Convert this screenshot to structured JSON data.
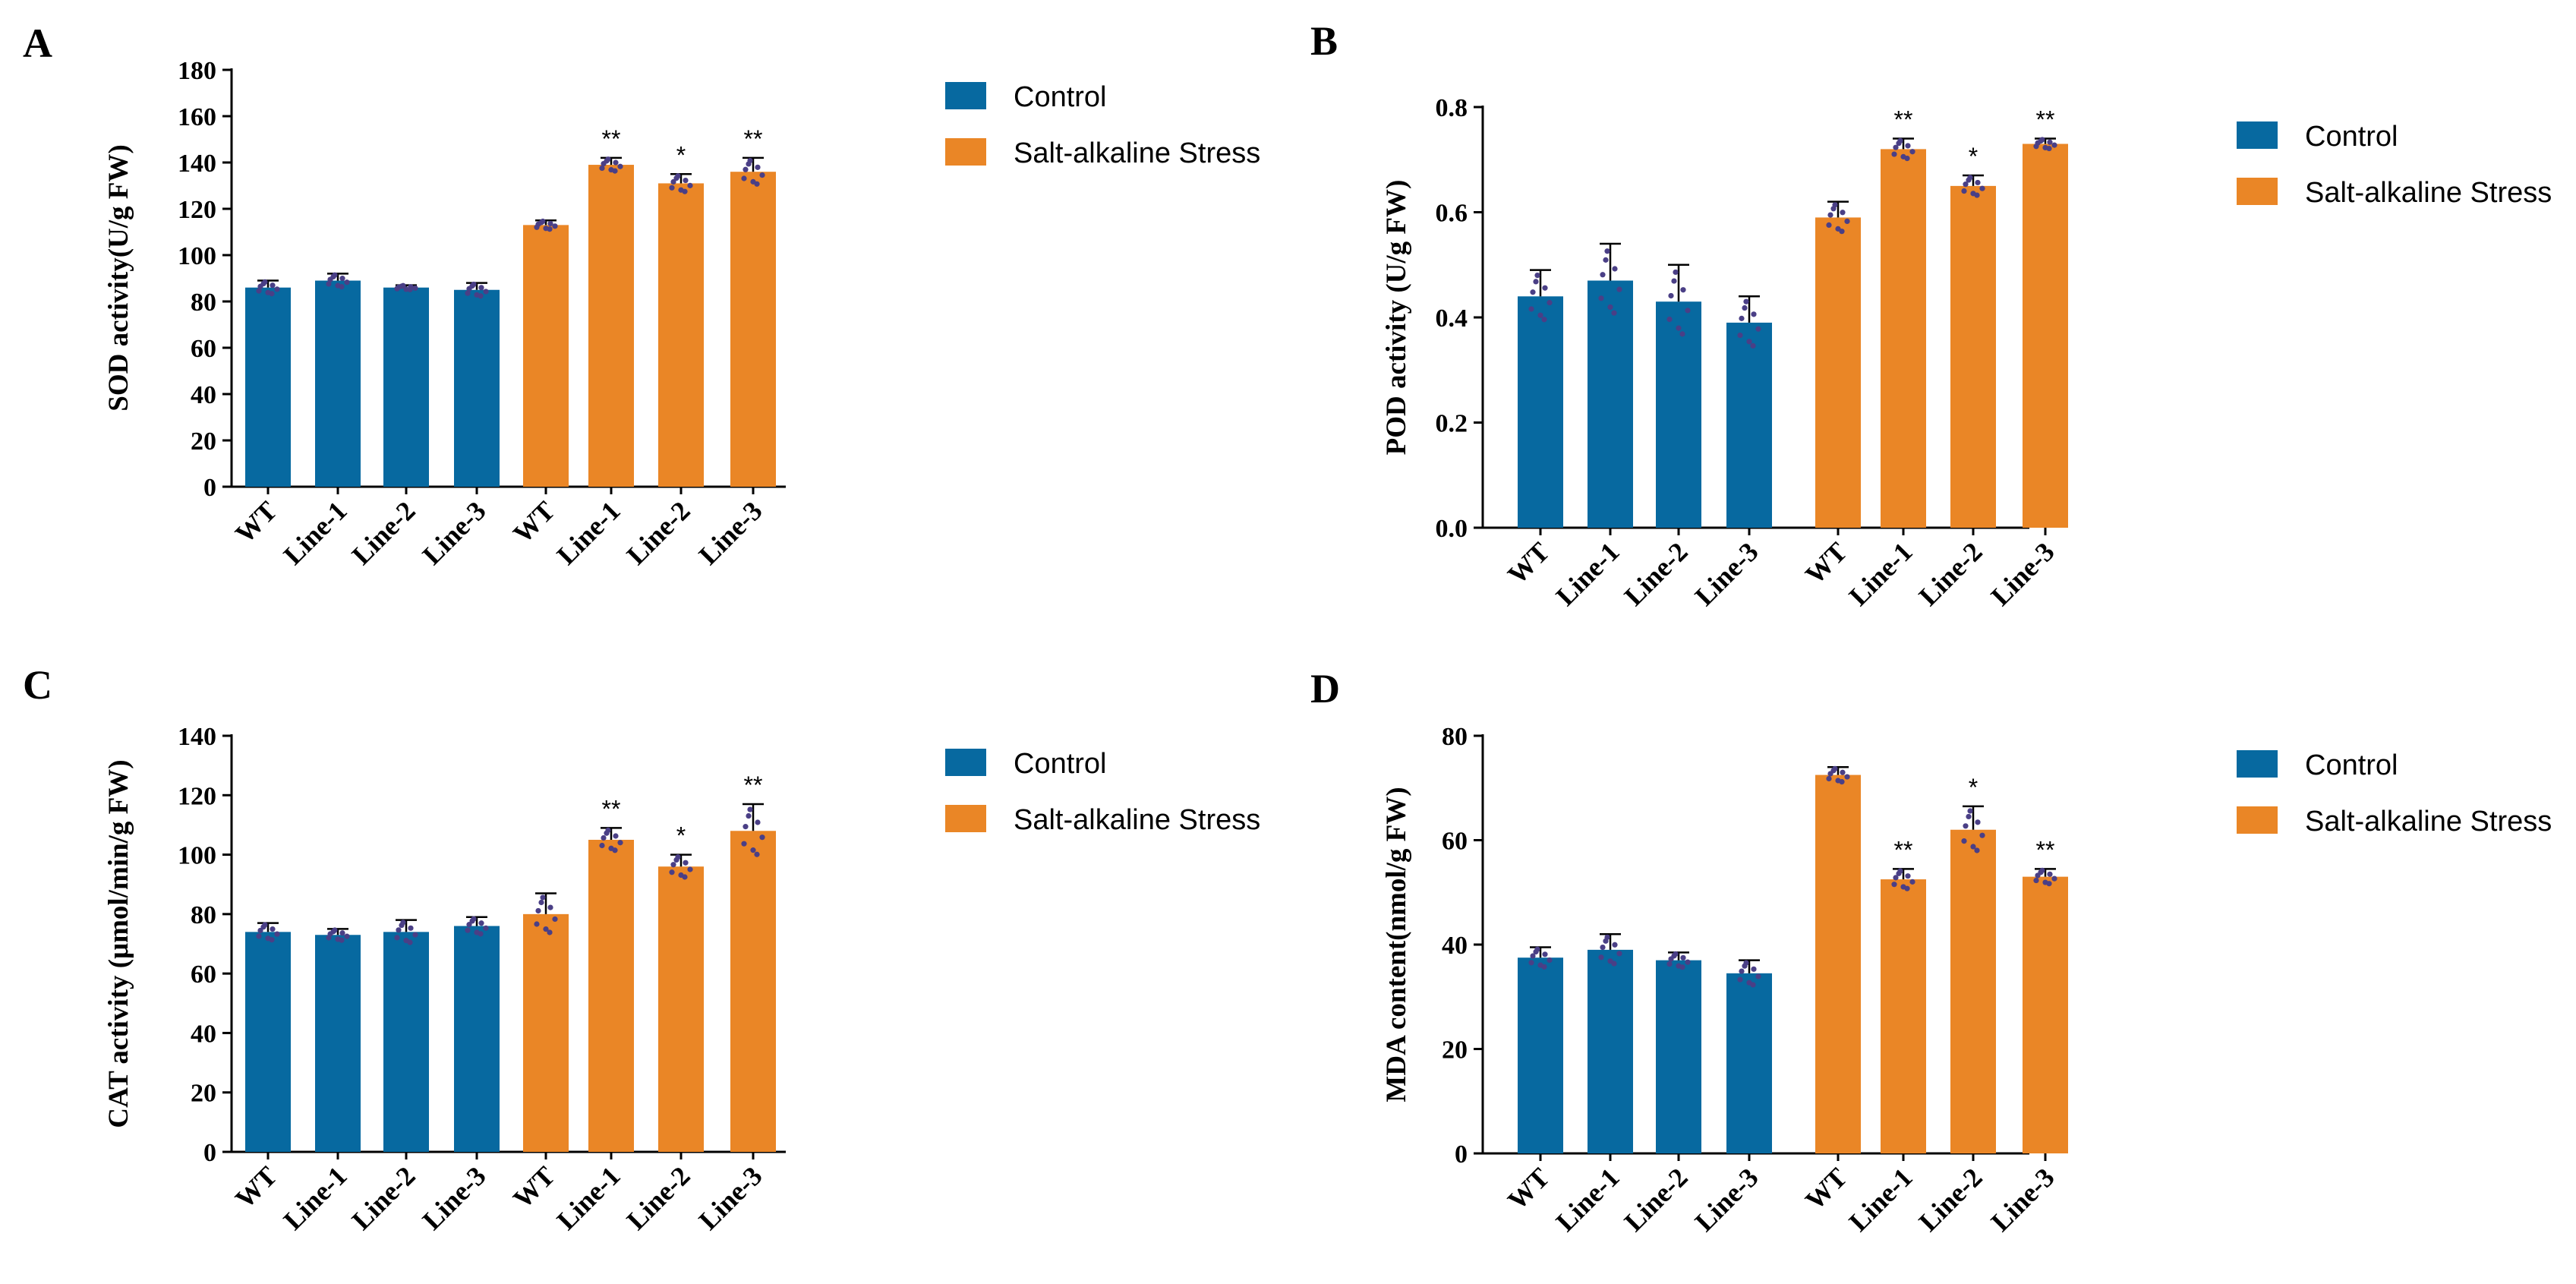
{
  "colors": {
    "control": "#0769a0",
    "stress": "#ea8626",
    "points": "#4a3f86",
    "axis": "#000000"
  },
  "legend": {
    "control_label": "Control",
    "stress_label": "Salt-alkaline Stress"
  },
  "chart_data": [
    {
      "panel": "A",
      "type": "bar",
      "title": "",
      "xlabel": "",
      "ylabel": "SOD activity(U/g FW)",
      "ylim": [
        0,
        180
      ],
      "yticks": [
        0,
        20,
        40,
        60,
        80,
        100,
        120,
        140,
        160,
        180
      ],
      "tick_decimals": 0,
      "categories": [
        "WT",
        "Line-1",
        "Line-2",
        "Line-3"
      ],
      "series": [
        {
          "name": "Control",
          "values": [
            86,
            89,
            86,
            85
          ],
          "errors": [
            3,
            3,
            1,
            3
          ],
          "significance": [
            "",
            "",
            "",
            ""
          ]
        },
        {
          "name": "Salt-alkaline Stress",
          "values": [
            113,
            139,
            131,
            136
          ],
          "errors": [
            2,
            3,
            4,
            6
          ],
          "significance": [
            "",
            "**",
            "*",
            "**"
          ]
        }
      ]
    },
    {
      "panel": "B",
      "type": "bar",
      "title": "",
      "xlabel": "",
      "ylabel": "POD activity (U/g FW)",
      "ylim": [
        0,
        0.8
      ],
      "yticks": [
        0,
        0.2,
        0.4,
        0.6,
        0.8
      ],
      "tick_decimals": 1,
      "categories": [
        "WT",
        "Line-1",
        "Line-2",
        "Line-3"
      ],
      "series": [
        {
          "name": "Control",
          "values": [
            0.44,
            0.47,
            0.43,
            0.39
          ],
          "errors": [
            0.05,
            0.07,
            0.07,
            0.05
          ],
          "significance": [
            "",
            "",
            "",
            ""
          ]
        },
        {
          "name": "Salt-alkaline Stress",
          "values": [
            0.59,
            0.72,
            0.65,
            0.73
          ],
          "errors": [
            0.03,
            0.02,
            0.02,
            0.01
          ],
          "significance": [
            "",
            "**",
            "*",
            "**"
          ]
        }
      ]
    },
    {
      "panel": "C",
      "type": "bar",
      "title": "",
      "xlabel": "",
      "ylabel": "CAT activity (μmol/min/g FW)",
      "ylim": [
        0,
        140
      ],
      "yticks": [
        0,
        20,
        40,
        60,
        80,
        100,
        120,
        140
      ],
      "tick_decimals": 0,
      "categories": [
        "WT",
        "Line-1",
        "Line-2",
        "Line-3"
      ],
      "series": [
        {
          "name": "Control",
          "values": [
            74,
            73,
            74,
            76
          ],
          "errors": [
            3,
            2,
            4,
            3
          ],
          "significance": [
            "",
            "",
            "",
            ""
          ]
        },
        {
          "name": "Salt-alkaline Stress",
          "values": [
            80,
            105,
            96,
            108
          ],
          "errors": [
            7,
            4,
            4,
            9
          ],
          "significance": [
            "",
            "**",
            "*",
            "**"
          ]
        }
      ]
    },
    {
      "panel": "D",
      "type": "bar",
      "title": "",
      "xlabel": "",
      "ylabel": "MDA content(nmol/g FW)",
      "ylim": [
        0,
        80
      ],
      "yticks": [
        0,
        20,
        40,
        60,
        80
      ],
      "tick_decimals": 0,
      "categories": [
        "WT",
        "Line-1",
        "Line-2",
        "Line-3"
      ],
      "series": [
        {
          "name": "Control",
          "values": [
            37.5,
            39,
            37,
            34.5
          ],
          "errors": [
            2,
            3,
            1.5,
            2.5
          ],
          "significance": [
            "",
            "",
            "",
            ""
          ]
        },
        {
          "name": "Salt-alkaline Stress",
          "values": [
            72.5,
            52.5,
            62,
            53
          ],
          "errors": [
            1.5,
            2,
            4.5,
            1.5
          ],
          "significance": [
            "",
            "**",
            "*",
            "**"
          ]
        }
      ]
    }
  ]
}
